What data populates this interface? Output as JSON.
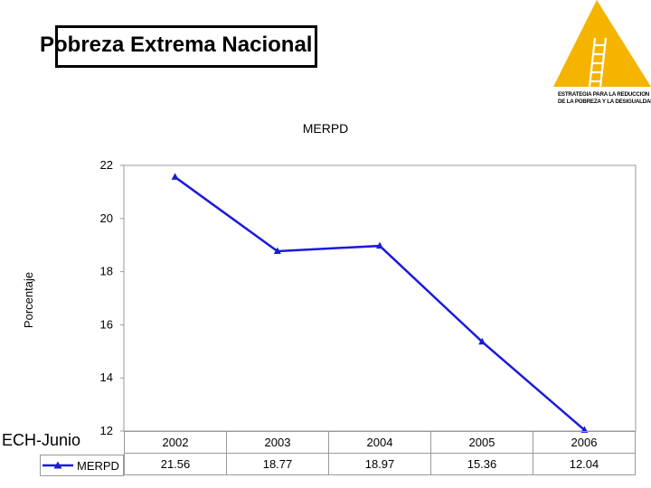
{
  "slide": {
    "title": "Pobreza Extrema Nacional",
    "source_label": "ECH-Junio",
    "logo_line1": "ESTRATEGIA PARA LA REDUCCION",
    "logo_line2": "DE LA POBREZA Y LA DESIGUALDAD",
    "logo_color": "#F5B400"
  },
  "chart_data": {
    "type": "line",
    "title": "MERPD",
    "ylabel": "Porcentaje",
    "xlabel": "",
    "categories": [
      "2002",
      "2003",
      "2004",
      "2005",
      "2006"
    ],
    "series": [
      {
        "name": "MERPD",
        "values": [
          21.56,
          18.77,
          18.97,
          15.36,
          12.04
        ],
        "color": "#1a1adb",
        "marker": "triangle"
      }
    ],
    "ylim": [
      12,
      22
    ],
    "yticks": [
      "12",
      "14",
      "16",
      "18",
      "20",
      "22"
    ],
    "grid": false,
    "legend": "data-table"
  }
}
